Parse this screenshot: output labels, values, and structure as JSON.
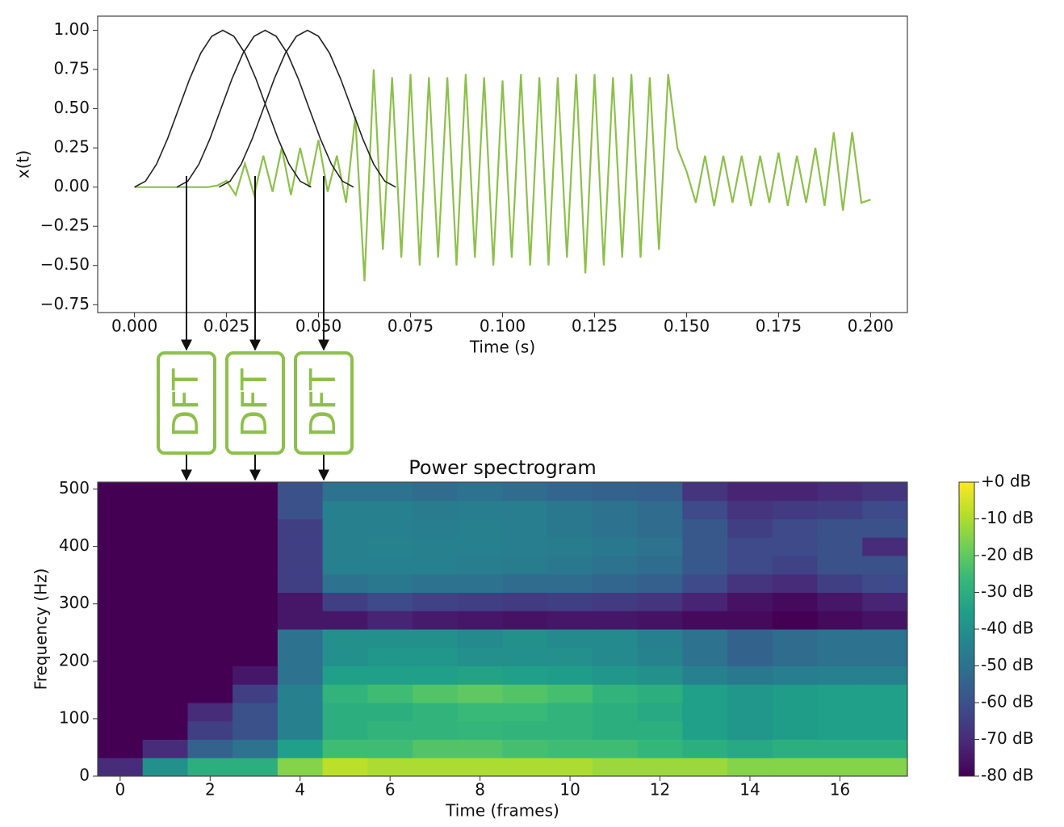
{
  "chart_data": [
    {
      "type": "line",
      "xlabel": "Time (s)",
      "ylabel": "x(t)",
      "xlim": [
        -0.01,
        0.21
      ],
      "ylim": [
        -0.8,
        1.09
      ],
      "xticks": [
        {
          "value": 0,
          "label": "0.000"
        },
        {
          "value": 0.025,
          "label": "0.025"
        },
        {
          "value": 0.05,
          "label": "0.050"
        },
        {
          "value": 0.075,
          "label": "0.075"
        },
        {
          "value": 0.1,
          "label": "0.100"
        },
        {
          "value": 0.125,
          "label": "0.125"
        },
        {
          "value": 0.15,
          "label": "0.150"
        },
        {
          "value": 0.175,
          "label": "0.175"
        },
        {
          "value": 0.2,
          "label": "0.200"
        }
      ],
      "yticks": [
        {
          "value": 1,
          "label": "1.00"
        },
        {
          "value": 0.75,
          "label": "0.75"
        },
        {
          "value": 0.5,
          "label": "0.50"
        },
        {
          "value": 0.25,
          "label": "0.25"
        },
        {
          "value": 0,
          "label": "0.00"
        },
        {
          "value": -0.25,
          "label": "−0.25"
        },
        {
          "value": -0.5,
          "label": "−0.50"
        },
        {
          "value": -0.75,
          "label": "−0.75"
        }
      ],
      "series": [
        {
          "color": "#8dc04a",
          "x": [
            0,
            0.0025,
            0.005,
            0.0075,
            0.01,
            0.0125,
            0.015,
            0.0175,
            0.02,
            0.0225,
            0.025,
            0.0275,
            0.03,
            0.0325,
            0.035,
            0.0375,
            0.04,
            0.0425,
            0.045,
            0.0475,
            0.05,
            0.0525,
            0.055,
            0.0575,
            0.06,
            0.0625,
            0.065,
            0.0675,
            0.07,
            0.0725,
            0.075,
            0.0775,
            0.08,
            0.0825,
            0.085,
            0.0875,
            0.09,
            0.0925,
            0.095,
            0.0975,
            0.1,
            0.1025,
            0.105,
            0.1075,
            0.11,
            0.1125,
            0.115,
            0.1175,
            0.12,
            0.1225,
            0.125,
            0.1275,
            0.13,
            0.1325,
            0.135,
            0.1375,
            0.14,
            0.1425,
            0.145,
            0.1475,
            0.15,
            0.1525,
            0.155,
            0.1575,
            0.16,
            0.1625,
            0.165,
            0.1675,
            0.17,
            0.1725,
            0.175,
            0.1775,
            0.18,
            0.1825,
            0.185,
            0.1875,
            0.19,
            0.1925,
            0.195,
            0.1975,
            0.2
          ],
          "values": [
            0,
            0,
            0,
            0,
            0,
            0,
            0,
            0,
            0,
            0.01,
            0.04,
            -0.05,
            0.15,
            -0.05,
            0.2,
            -0.03,
            0.25,
            -0.05,
            0.25,
            0,
            0.3,
            -0.03,
            0.2,
            -0.1,
            0.45,
            -0.6,
            0.75,
            -0.4,
            0.7,
            -0.45,
            0.72,
            -0.5,
            0.7,
            -0.45,
            0.7,
            -0.5,
            0.72,
            -0.45,
            0.7,
            -0.5,
            0.68,
            -0.45,
            0.72,
            -0.5,
            0.7,
            -0.5,
            0.7,
            -0.45,
            0.72,
            -0.55,
            0.72,
            -0.5,
            0.7,
            -0.45,
            0.72,
            -0.45,
            0.7,
            -0.4,
            0.72,
            0.25,
            0.1,
            -0.1,
            0.2,
            -0.12,
            0.2,
            -0.1,
            0.2,
            -0.12,
            0.2,
            -0.1,
            0.22,
            -0.12,
            0.2,
            -0.1,
            0.25,
            -0.12,
            0.35,
            -0.15,
            0.35,
            -0.1,
            -0.08
          ]
        },
        {
          "color": "#222222",
          "x": [
            0,
            0.003,
            0.006,
            0.009,
            0.012,
            0.015,
            0.018,
            0.021,
            0.024,
            0.027,
            0.03,
            0.033,
            0.036,
            0.039,
            0.042,
            0.045,
            0.048
          ],
          "values": [
            0,
            0.038,
            0.146,
            0.309,
            0.5,
            0.691,
            0.854,
            0.962,
            1,
            0.962,
            0.854,
            0.691,
            0.5,
            0.309,
            0.146,
            0.038,
            0
          ]
        },
        {
          "color": "#222222",
          "x": [
            0.0115,
            0.0145,
            0.0175,
            0.0205,
            0.0235,
            0.0265,
            0.0295,
            0.0325,
            0.0355,
            0.0385,
            0.0415,
            0.0445,
            0.0475,
            0.0505,
            0.0535,
            0.0565,
            0.0595
          ],
          "values": [
            0,
            0.038,
            0.146,
            0.309,
            0.5,
            0.691,
            0.854,
            0.962,
            1,
            0.962,
            0.854,
            0.691,
            0.5,
            0.309,
            0.146,
            0.038,
            0
          ]
        },
        {
          "color": "#222222",
          "x": [
            0.023,
            0.026,
            0.029,
            0.032,
            0.035,
            0.038,
            0.041,
            0.044,
            0.047,
            0.05,
            0.053,
            0.056,
            0.059,
            0.062,
            0.065,
            0.068,
            0.071
          ],
          "values": [
            0,
            0.038,
            0.146,
            0.309,
            0.5,
            0.691,
            0.854,
            0.962,
            1,
            0.962,
            0.854,
            0.691,
            0.5,
            0.309,
            0.146,
            0.038,
            0
          ]
        }
      ]
    },
    {
      "type": "heatmap",
      "title": "Power spectrogram",
      "xlabel": "Time (frames)",
      "ylabel": "Frequency (Hz)",
      "xlim": [
        -0.5,
        17.5
      ],
      "ylim": [
        0,
        512
      ],
      "xticks": [
        0,
        2,
        4,
        6,
        8,
        10,
        12,
        14,
        16
      ],
      "yticks": [
        0,
        100,
        200,
        300,
        400,
        500
      ],
      "x": [
        0,
        1,
        2,
        3,
        4,
        5,
        6,
        7,
        8,
        9,
        10,
        11,
        12,
        13,
        14,
        15,
        16,
        17
      ],
      "y": [
        16,
        48,
        80,
        112,
        144,
        176,
        208,
        240,
        272,
        304,
        336,
        368,
        400,
        432,
        464,
        496
      ],
      "values": [
        [
          -70,
          -80,
          -80,
          -80,
          -80,
          -80,
          -80,
          -80,
          -80,
          -80,
          -80,
          -80,
          -80,
          -80,
          -80,
          -80
        ],
        [
          -40,
          -70,
          -80,
          -80,
          -80,
          -80,
          -80,
          -80,
          -80,
          -80,
          -80,
          -80,
          -80,
          -80,
          -80,
          -80
        ],
        [
          -30,
          -55,
          -65,
          -70,
          -80,
          -80,
          -80,
          -80,
          -80,
          -80,
          -80,
          -80,
          -80,
          -80,
          -80,
          -80
        ],
        [
          -30,
          -50,
          -60,
          -60,
          -65,
          -75,
          -80,
          -80,
          -80,
          -80,
          -80,
          -80,
          -80,
          -80,
          -80,
          -80
        ],
        [
          -15,
          -35,
          -45,
          -45,
          -45,
          -50,
          -50,
          -50,
          -75,
          -75,
          -65,
          -65,
          -65,
          -65,
          -60,
          -60
        ],
        [
          -8,
          -25,
          -30,
          -30,
          -28,
          -35,
          -40,
          -40,
          -75,
          -65,
          -50,
          -45,
          -45,
          -45,
          -45,
          -50
        ],
        [
          -10,
          -25,
          -28,
          -30,
          -25,
          -35,
          -38,
          -40,
          -72,
          -62,
          -48,
          -45,
          -44,
          -45,
          -45,
          -50
        ],
        [
          -10,
          -22,
          -28,
          -28,
          -22,
          -35,
          -38,
          -40,
          -74,
          -64,
          -50,
          -45,
          -45,
          -46,
          -47,
          -52
        ],
        [
          -10,
          -22,
          -27,
          -26,
          -20,
          -34,
          -40,
          -42,
          -75,
          -65,
          -50,
          -46,
          -45,
          -45,
          -46,
          -50
        ],
        [
          -10,
          -24,
          -28,
          -26,
          -22,
          -35,
          -40,
          -40,
          -76,
          -66,
          -52,
          -47,
          -46,
          -46,
          -46,
          -52
        ],
        [
          -10,
          -25,
          -28,
          -28,
          -24,
          -36,
          -40,
          -42,
          -75,
          -65,
          -52,
          -48,
          -47,
          -48,
          -48,
          -54
        ],
        [
          -12,
          -25,
          -30,
          -30,
          -28,
          -38,
          -42,
          -42,
          -75,
          -66,
          -54,
          -50,
          -48,
          -50,
          -50,
          -55
        ],
        [
          -12,
          -27,
          -30,
          -32,
          -30,
          -40,
          -44,
          -45,
          -76,
          -68,
          -56,
          -52,
          -50,
          -52,
          -52,
          -56
        ],
        [
          -12,
          -30,
          -35,
          -35,
          -35,
          -45,
          -50,
          -50,
          -78,
          -72,
          -62,
          -58,
          -58,
          -58,
          -62,
          -68
        ],
        [
          -15,
          -32,
          -38,
          -38,
          -38,
          -48,
          -55,
          -55,
          -78,
          -76,
          -68,
          -62,
          -62,
          -65,
          -68,
          -72
        ],
        [
          -15,
          -30,
          -36,
          -36,
          -36,
          -46,
          -52,
          -52,
          -80,
          -78,
          -70,
          -64,
          -62,
          -62,
          -66,
          -72
        ],
        [
          -15,
          -30,
          -35,
          -35,
          -35,
          -45,
          -50,
          -50,
          -78,
          -75,
          -65,
          -60,
          -60,
          -60,
          -65,
          -70
        ],
        [
          -15,
          -30,
          -35,
          -35,
          -35,
          -45,
          -50,
          -50,
          -76,
          -72,
          -62,
          -60,
          -70,
          -60,
          -62,
          -68
        ]
      ],
      "colorbar": {
        "lim": [
          -80,
          0
        ],
        "ticks": [
          {
            "value": 0,
            "label": "+0 dB"
          },
          {
            "value": -10,
            "label": "-10 dB"
          },
          {
            "value": -20,
            "label": "-20 dB"
          },
          {
            "value": -30,
            "label": "-30 dB"
          },
          {
            "value": -40,
            "label": "-40 dB"
          },
          {
            "value": -50,
            "label": "-50 dB"
          },
          {
            "value": -60,
            "label": "-60 dB"
          },
          {
            "value": -70,
            "label": "-70 dB"
          },
          {
            "value": -80,
            "label": "-80 dB"
          }
        ]
      }
    }
  ],
  "dft_boxes": [
    "DFT",
    "DFT",
    "DFT"
  ]
}
